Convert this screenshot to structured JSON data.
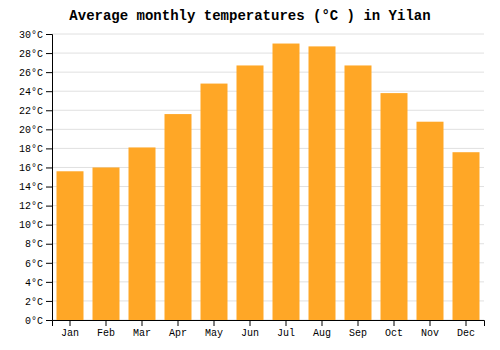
{
  "chart_data": {
    "type": "bar",
    "title": "Average monthly temperatures (°C ) in Yilan",
    "categories": [
      "Jan",
      "Feb",
      "Mar",
      "Apr",
      "May",
      "Jun",
      "Jul",
      "Aug",
      "Sep",
      "Oct",
      "Nov",
      "Dec"
    ],
    "values": [
      15.6,
      16.0,
      18.1,
      21.6,
      24.8,
      26.7,
      29.0,
      28.7,
      26.7,
      23.8,
      20.8,
      17.6
    ],
    "color": "#FFA726",
    "ylim": [
      0,
      30
    ],
    "yticks": [
      {
        "value": 0,
        "label": "0°C"
      },
      {
        "value": 2,
        "label": "2°C"
      },
      {
        "value": 4,
        "label": "4°C"
      },
      {
        "value": 6,
        "label": "6°C"
      },
      {
        "value": 8,
        "label": "8°C"
      },
      {
        "value": 10,
        "label": "10°C"
      },
      {
        "value": 12,
        "label": "12°C"
      },
      {
        "value": 14,
        "label": "14°C"
      },
      {
        "value": 16,
        "label": "16°C"
      },
      {
        "value": 18,
        "label": "18°C"
      },
      {
        "value": 20,
        "label": "20°C"
      },
      {
        "value": 22,
        "label": "22°C"
      },
      {
        "value": 24,
        "label": "24°C"
      },
      {
        "value": 26,
        "label": "26°C"
      },
      {
        "value": 28,
        "label": "28°C"
      },
      {
        "value": 30,
        "label": "30°C"
      }
    ],
    "grid": true
  }
}
